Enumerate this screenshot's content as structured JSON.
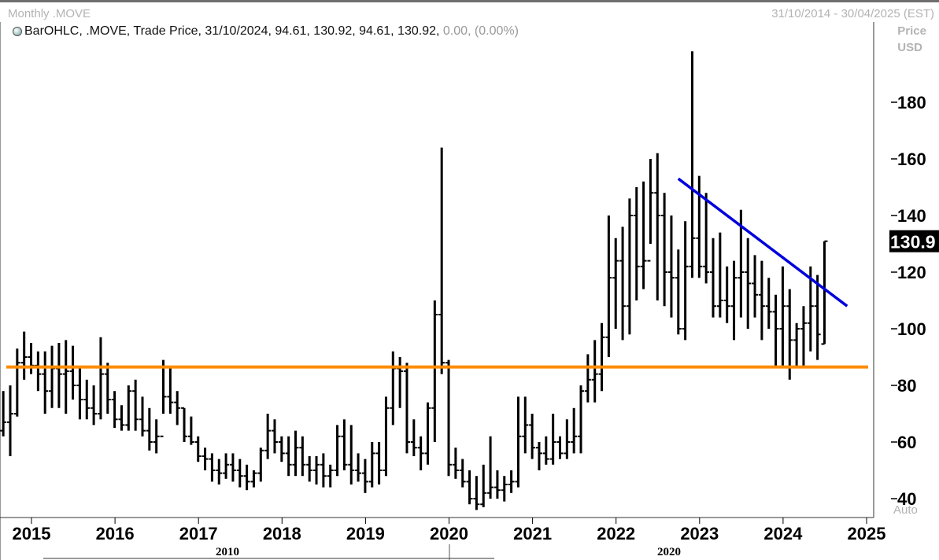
{
  "header": {
    "title": "Monthly .MOVE",
    "date_range": "31/10/2014 - 30/04/2025 (EST)"
  },
  "legend": {
    "main": "BarOHLC, .MOVE, Trade Price, 31/10/2024, 94.61, 130.92, 94.61, 130.92,",
    "change": "0.00, (0.00%)"
  },
  "axis": {
    "price_label_line1": "Price",
    "price_label_line2": "USD",
    "auto_label": "Auto"
  },
  "colors": {
    "bars": "#000000",
    "support_line": "#ff8c00",
    "trend_line": "#0000dd",
    "last_price_bg": "#000000"
  },
  "chart_data": {
    "type": "bar",
    "subtype": "ohlc",
    "frequency": "monthly",
    "ylim": [
      36,
      200
    ],
    "y_ticks": [
      40,
      60,
      80,
      100,
      120,
      140,
      160,
      180
    ],
    "x_ticks": [
      "2015",
      "2016",
      "2017",
      "2018",
      "2019",
      "2020",
      "2021",
      "2022",
      "2023",
      "2024",
      "2025"
    ],
    "decades": [
      "2010",
      "2020"
    ],
    "last_price": "130.9",
    "grid": false,
    "horizontal_line": {
      "value": 86.5
    },
    "trend_line": {
      "start": [
        "2023-01",
        153
      ],
      "end": [
        "2024-11",
        108
      ]
    },
    "series": [
      {
        "bars": [
          [
            "2014-11",
            59,
            102,
            59,
            64
          ],
          [
            "2014-12",
            64,
            78,
            62,
            67
          ],
          [
            "2015-01",
            67,
            80,
            55,
            70
          ],
          [
            "2015-02",
            70,
            93,
            69,
            88
          ],
          [
            "2015-03",
            88,
            99,
            82,
            90
          ],
          [
            "2015-04",
            90,
            95,
            84,
            87
          ],
          [
            "2015-05",
            87,
            92,
            78,
            84
          ],
          [
            "2015-06",
            84,
            92,
            70,
            78
          ],
          [
            "2015-07",
            78,
            94,
            72,
            86
          ],
          [
            "2015-08",
            86,
            95,
            72,
            84
          ],
          [
            "2015-09",
            84,
            96,
            70,
            85
          ],
          [
            "2015-10",
            85,
            94,
            75,
            80
          ],
          [
            "2015-11",
            80,
            86,
            68,
            75
          ],
          [
            "2015-12",
            75,
            82,
            68,
            72
          ],
          [
            "2016-01",
            72,
            80,
            66,
            70
          ],
          [
            "2016-02",
            70,
            97,
            68,
            84
          ],
          [
            "2016-03",
            84,
            88,
            70,
            75
          ],
          [
            "2016-04",
            75,
            78,
            65,
            68
          ],
          [
            "2016-05",
            68,
            73,
            64,
            66
          ],
          [
            "2016-06",
            66,
            80,
            64,
            78
          ],
          [
            "2016-07",
            78,
            82,
            64,
            68
          ],
          [
            "2016-08",
            68,
            76,
            62,
            64
          ],
          [
            "2016-09",
            64,
            72,
            57,
            60
          ],
          [
            "2016-10",
            60,
            68,
            56,
            62
          ],
          [
            "2016-11",
            62,
            89,
            70,
            76
          ],
          [
            "2016-12",
            76,
            86,
            70,
            74
          ],
          [
            "2017-01",
            74,
            78,
            66,
            72
          ],
          [
            "2017-02",
            72,
            72,
            60,
            62
          ],
          [
            "2017-03",
            62,
            69,
            59,
            60
          ],
          [
            "2017-04",
            60,
            62,
            53,
            55
          ],
          [
            "2017-05",
            55,
            58,
            50,
            54
          ],
          [
            "2017-06",
            54,
            56,
            46,
            50
          ],
          [
            "2017-07",
            50,
            54,
            45,
            49
          ],
          [
            "2017-08",
            49,
            56,
            47,
            52
          ],
          [
            "2017-09",
            52,
            56,
            46,
            50
          ],
          [
            "2017-10",
            50,
            54,
            44,
            48
          ],
          [
            "2017-11",
            48,
            52,
            43,
            46
          ],
          [
            "2017-12",
            46,
            50,
            44,
            49
          ],
          [
            "2018-01",
            49,
            58,
            46,
            57
          ],
          [
            "2018-02",
            57,
            70,
            54,
            64
          ],
          [
            "2018-03",
            64,
            68,
            56,
            60
          ],
          [
            "2018-04",
            60,
            62,
            53,
            56
          ],
          [
            "2018-05",
            56,
            62,
            48,
            52
          ],
          [
            "2018-06",
            52,
            64,
            48,
            58
          ],
          [
            "2018-07",
            58,
            62,
            48,
            52
          ],
          [
            "2018-08",
            52,
            55,
            46,
            50
          ],
          [
            "2018-09",
            50,
            55,
            45,
            52
          ],
          [
            "2018-10",
            52,
            56,
            44,
            48
          ],
          [
            "2018-11",
            48,
            52,
            44,
            50
          ],
          [
            "2018-12",
            50,
            66,
            48,
            62
          ],
          [
            "2019-01",
            62,
            68,
            50,
            52
          ],
          [
            "2019-02",
            52,
            66,
            45,
            50
          ],
          [
            "2019-03",
            50,
            56,
            46,
            49
          ],
          [
            "2019-04",
            49,
            54,
            42,
            46
          ],
          [
            "2019-05",
            46,
            60,
            44,
            56
          ],
          [
            "2019-06",
            56,
            60,
            45,
            50
          ],
          [
            "2019-07",
            50,
            76,
            48,
            72
          ],
          [
            "2019-08",
            72,
            92,
            66,
            86
          ],
          [
            "2019-09",
            86,
            90,
            72,
            85
          ],
          [
            "2019-10",
            85,
            88,
            56,
            60
          ],
          [
            "2019-11",
            60,
            68,
            55,
            58
          ],
          [
            "2019-12",
            58,
            62,
            50,
            56
          ],
          [
            "2020-01",
            56,
            74,
            52,
            72
          ],
          [
            "2020-02",
            72,
            110,
            60,
            105
          ],
          [
            "2020-03",
            105,
            164,
            84,
            88
          ],
          [
            "2020-04",
            88,
            89,
            48,
            52
          ],
          [
            "2020-05",
            52,
            58,
            47,
            50
          ],
          [
            "2020-06",
            50,
            54,
            44,
            46
          ],
          [
            "2020-07",
            46,
            50,
            38,
            40
          ],
          [
            "2020-08",
            40,
            48,
            36,
            38
          ],
          [
            "2020-09",
            38,
            52,
            37,
            42
          ],
          [
            "2020-10",
            42,
            62,
            40,
            44
          ],
          [
            "2020-11",
            44,
            50,
            40,
            43
          ],
          [
            "2020-12",
            43,
            48,
            39,
            45
          ],
          [
            "2021-01",
            45,
            50,
            42,
            46
          ],
          [
            "2021-02",
            46,
            76,
            44,
            62
          ],
          [
            "2021-03",
            62,
            76,
            56,
            66
          ],
          [
            "2021-04",
            66,
            70,
            54,
            58
          ],
          [
            "2021-05",
            58,
            60,
            50,
            56
          ],
          [
            "2021-06",
            56,
            62,
            52,
            54
          ],
          [
            "2021-07",
            54,
            70,
            52,
            60
          ],
          [
            "2021-08",
            60,
            62,
            54,
            56
          ],
          [
            "2021-09",
            56,
            68,
            54,
            60
          ],
          [
            "2021-10",
            60,
            72,
            56,
            62
          ],
          [
            "2021-11",
            62,
            80,
            56,
            78
          ],
          [
            "2021-12",
            78,
            91,
            74,
            82
          ],
          [
            "2022-01",
            82,
            96,
            74,
            84
          ],
          [
            "2022-02",
            84,
            102,
            78,
            97
          ],
          [
            "2022-03",
            97,
            140,
            90,
            118
          ],
          [
            "2022-04",
            118,
            132,
            100,
            124
          ],
          [
            "2022-05",
            124,
            136,
            96,
            108
          ],
          [
            "2022-06",
            108,
            146,
            98,
            140
          ],
          [
            "2022-07",
            140,
            150,
            110,
            122
          ],
          [
            "2022-08",
            122,
            152,
            114,
            124
          ],
          [
            "2022-09",
            124,
            160,
            130,
            148
          ],
          [
            "2022-10",
            148,
            162,
            110,
            140
          ],
          [
            "2022-11",
            140,
            148,
            108,
            120
          ],
          [
            "2022-12",
            120,
            140,
            104,
            118
          ],
          [
            "2023-01",
            118,
            128,
            98,
            100
          ],
          [
            "2023-02",
            100,
            138,
            96,
            122
          ],
          [
            "2023-03",
            122,
            198,
            118,
            132
          ],
          [
            "2023-04",
            132,
            154,
            118,
            122
          ],
          [
            "2023-05",
            122,
            148,
            116,
            120
          ],
          [
            "2023-06",
            120,
            132,
            104,
            108
          ],
          [
            "2023-07",
            108,
            134,
            104,
            110
          ],
          [
            "2023-08",
            110,
            122,
            102,
            108
          ],
          [
            "2023-09",
            108,
            124,
            96,
            118
          ],
          [
            "2023-10",
            118,
            142,
            104,
            120
          ],
          [
            "2023-11",
            120,
            132,
            100,
            116
          ],
          [
            "2023-12",
            116,
            126,
            104,
            112
          ],
          [
            "2024-01",
            112,
            124,
            96,
            108
          ],
          [
            "2024-02",
            108,
            118,
            100,
            106
          ],
          [
            "2024-03",
            106,
            112,
            86,
            100
          ],
          [
            "2024-04",
            100,
            122,
            87,
            108
          ],
          [
            "2024-05",
            108,
            114,
            82,
            96
          ],
          [
            "2024-06",
            96,
            102,
            86,
            100
          ],
          [
            "2024-07",
            100,
            108,
            87,
            102
          ],
          [
            "2024-08",
            102,
            122,
            92,
            108
          ],
          [
            "2024-09",
            108,
            119,
            89,
            98
          ],
          [
            "2024-10",
            94.61,
            130.92,
            94.61,
            130.92
          ]
        ]
      }
    ]
  }
}
